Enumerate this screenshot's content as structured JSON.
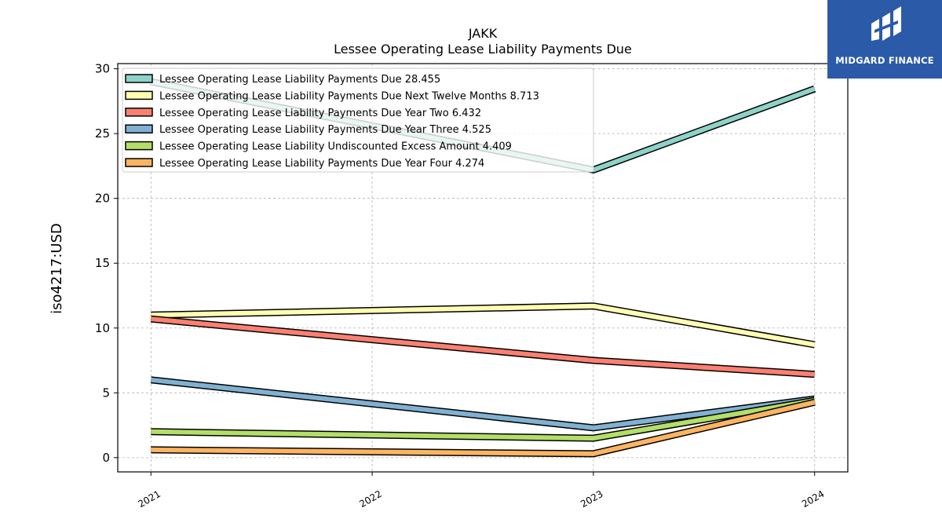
{
  "logo": {
    "text": "MIDGARD FINANCE",
    "icon": "midgard-logo-icon",
    "color": "#2b5aa8"
  },
  "chart_data": {
    "type": "line",
    "title": "JAKK",
    "subtitle": "Lessee Operating Lease Liability Payments Due",
    "xlabel": "",
    "ylabel": "iso4217:USD",
    "x": [
      "2021",
      "2022",
      "2023",
      "2024"
    ],
    "x_values": [
      2021,
      2022,
      2023,
      2024
    ],
    "xlim": [
      2020.85,
      2024.15
    ],
    "ylim": [
      -1.1,
      30.4
    ],
    "yticks": [
      0,
      5,
      10,
      15,
      20,
      25,
      30
    ],
    "grid": true,
    "legend_position": "top-left",
    "series": [
      {
        "name": "Lessee Operating Lease Liability Payments Due",
        "legend_value": "28.455",
        "color": "#8dd3c7",
        "x": [
          2021,
          2023,
          2024
        ],
        "values": [
          29.0,
          22.2,
          28.455
        ]
      },
      {
        "name": "Lessee Operating Lease Liability Payments Due Next Twelve Months",
        "legend_value": "8.713",
        "color": "#ffffb3",
        "x": [
          2021,
          2023,
          2024
        ],
        "values": [
          11.0,
          11.7,
          8.713
        ]
      },
      {
        "name": "Lessee Operating Lease Liability Payments Due Year Two",
        "legend_value": "6.432",
        "color": "#fb8072",
        "x": [
          2021,
          2023,
          2024
        ],
        "values": [
          10.7,
          7.5,
          6.432
        ]
      },
      {
        "name": "Lessee Operating Lease Liability Payments Due Year Three",
        "legend_value": "4.525",
        "color": "#80b1d3",
        "x": [
          2021,
          2023,
          2024
        ],
        "values": [
          6.0,
          2.3,
          4.525
        ]
      },
      {
        "name": "Lessee Operating Lease Liability Undiscounted Excess Amount",
        "legend_value": "4.409",
        "color": "#b3de69",
        "x": [
          2021,
          2023,
          2024
        ],
        "values": [
          2.0,
          1.5,
          4.409
        ]
      },
      {
        "name": "Lessee Operating Lease Liability Payments Due Year Four",
        "legend_value": "4.274",
        "color": "#fdb462",
        "x": [
          2021,
          2023,
          2024
        ],
        "values": [
          0.6,
          0.3,
          4.274
        ]
      }
    ]
  }
}
